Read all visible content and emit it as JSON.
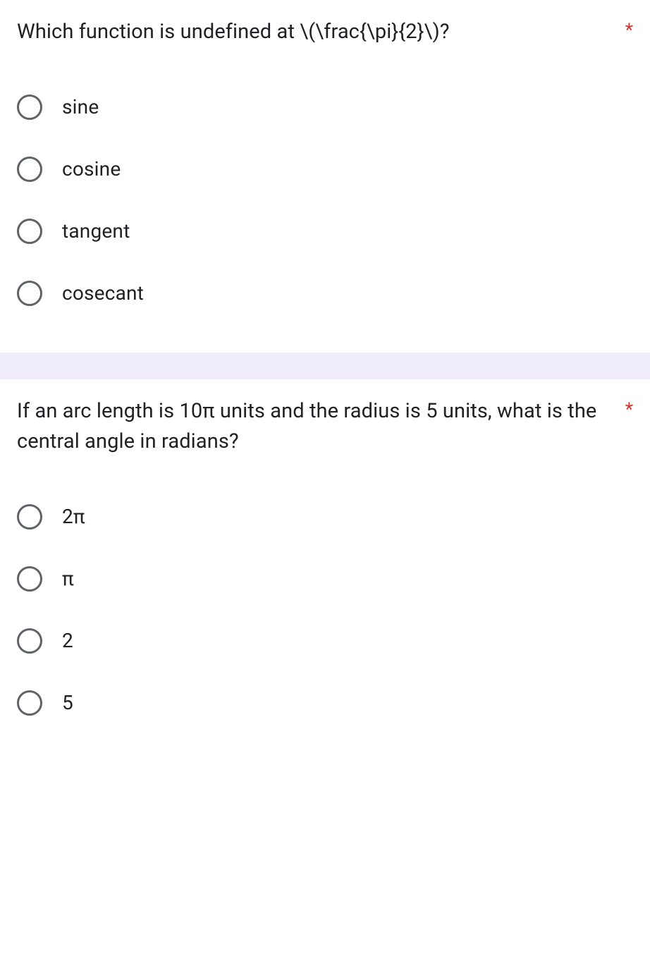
{
  "questions": [
    {
      "text": "Which function is undefined at \\(\\frac{\\pi}{2}\\)?",
      "required": "*",
      "options": [
        {
          "label": "sine"
        },
        {
          "label": "cosine"
        },
        {
          "label": "tangent"
        },
        {
          "label": "cosecant"
        }
      ]
    },
    {
      "text": "If an arc length is 10π units and the radius is 5 units, what is the central angle in radians?",
      "required": "*",
      "options": [
        {
          "label": "2π"
        },
        {
          "label": "π"
        },
        {
          "label": "2"
        },
        {
          "label": "5"
        }
      ]
    }
  ],
  "colors": {
    "text_primary": "#202124",
    "required_asterisk": "#d93025",
    "radio_border": "#5f6368",
    "divider_bg": "#f0ebf8",
    "card_bg": "#ffffff"
  },
  "typography": {
    "question_fontsize": 29,
    "option_fontsize": 28,
    "asterisk_fontsize": 26,
    "font_family": "Roboto, Google Sans, Arial, sans-serif"
  },
  "layout": {
    "card_padding": 24,
    "radio_size": 36,
    "radio_border_width": 3.5,
    "option_gap": 26,
    "divider_height": 38
  }
}
